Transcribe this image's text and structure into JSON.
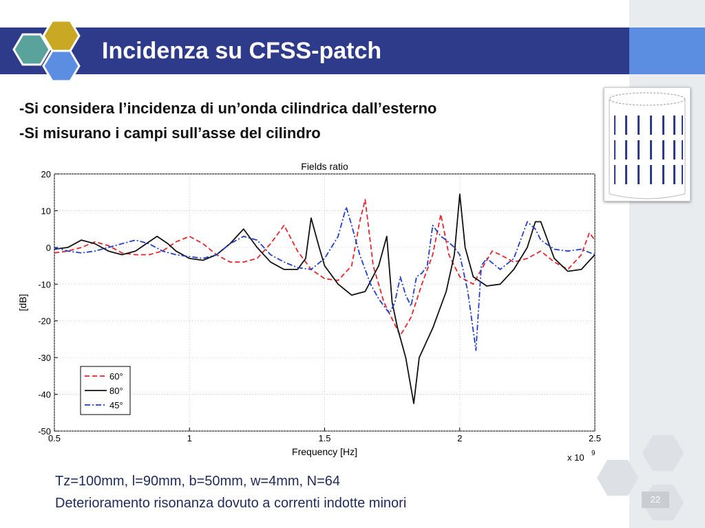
{
  "slide": {
    "title": "Incidenza su CFSS-patch",
    "bullets": [
      "-Si considera l’incidenza di un’onda cilindrica dall’esterno",
      "-Si misurano i campi sull’asse del cilindro"
    ],
    "notes": [
      "Tz=100mm,  l=90mm,  b=50mm,  w=4mm,  N=64",
      "Deterioramento risonanza dovuto a  correnti indotte minori"
    ],
    "slide_number": "22"
  },
  "colors": {
    "title_bar": "#2e3a8a",
    "accent": "#5b8de0",
    "series_60": "#e8232a",
    "series_80": "#111111",
    "series_45": "#1f3ec9"
  },
  "chart_data": {
    "type": "line",
    "title": "Fields ratio",
    "xlabel": "Frequency [Hz]",
    "ylabel": "[dB]",
    "x_multiplier_label": "x 10",
    "x_multiplier_exp": "9",
    "xlim": [
      0.5,
      2.5
    ],
    "ylim": [
      -50,
      20
    ],
    "x_ticks": [
      0.5,
      1,
      1.5,
      2,
      2.5
    ],
    "x_tick_labels": [
      "0.5",
      "1",
      "1.5",
      "2",
      "2.5"
    ],
    "y_ticks": [
      -50,
      -40,
      -30,
      -20,
      -10,
      0,
      10,
      20
    ],
    "y_tick_labels": [
      "-50",
      "-40",
      "-30",
      "-20",
      "-10",
      "0",
      "10",
      "20"
    ],
    "grid": true,
    "legend_position": "bottom-left",
    "series": [
      {
        "name": "60°",
        "style": "dashed",
        "x": [
          0.5,
          0.55,
          0.6,
          0.65,
          0.7,
          0.75,
          0.8,
          0.85,
          0.9,
          0.95,
          1.0,
          1.05,
          1.1,
          1.15,
          1.2,
          1.25,
          1.3,
          1.35,
          1.4,
          1.45,
          1.5,
          1.55,
          1.6,
          1.63,
          1.65,
          1.68,
          1.72,
          1.78,
          1.82,
          1.86,
          1.9,
          1.93,
          1.96,
          2.0,
          2.05,
          2.08,
          2.12,
          2.15,
          2.2,
          2.25,
          2.3,
          2.35,
          2.4,
          2.45,
          2.48,
          2.5
        ],
        "y": [
          -1.5,
          -1,
          0,
          1.5,
          0.5,
          -1.5,
          -2,
          -2,
          -1,
          1.5,
          3,
          1,
          -2,
          -4,
          -4,
          -3,
          1,
          6,
          -1,
          -6,
          -8.5,
          -9,
          -5,
          7,
          13,
          -5,
          -15,
          -24,
          -19,
          -10,
          -2,
          9,
          -2,
          -8,
          -10,
          -6,
          -1,
          -2,
          -4,
          -3,
          -1,
          -4,
          -6,
          -2,
          4,
          2
        ]
      },
      {
        "name": "80°",
        "style": "solid",
        "x": [
          0.5,
          0.55,
          0.6,
          0.65,
          0.7,
          0.75,
          0.8,
          0.85,
          0.88,
          0.92,
          0.95,
          1.0,
          1.05,
          1.1,
          1.15,
          1.2,
          1.25,
          1.3,
          1.35,
          1.4,
          1.43,
          1.45,
          1.48,
          1.5,
          1.55,
          1.6,
          1.65,
          1.7,
          1.73,
          1.75,
          1.77,
          1.8,
          1.83,
          1.85,
          1.9,
          1.95,
          1.98,
          2.0,
          2.02,
          2.05,
          2.1,
          2.15,
          2.2,
          2.25,
          2.28,
          2.3,
          2.35,
          2.4,
          2.45,
          2.5
        ],
        "y": [
          -0.5,
          0,
          2,
          1,
          -1,
          -2,
          -1,
          1.5,
          3,
          1,
          -1,
          -3,
          -3.5,
          -2,
          1,
          5,
          0,
          -4,
          -6,
          -6,
          -3,
          8,
          0,
          -5,
          -10,
          -13,
          -12,
          -5,
          3,
          -15,
          -22,
          -30,
          -42.5,
          -30,
          -22,
          -12,
          -2,
          14.5,
          0,
          -8,
          -10.5,
          -10,
          -6,
          0,
          7,
          7,
          -3,
          -6.5,
          -6,
          -2
        ]
      },
      {
        "name": "45°",
        "style": "dashdot",
        "x": [
          0.5,
          0.55,
          0.6,
          0.65,
          0.7,
          0.75,
          0.8,
          0.85,
          0.9,
          0.95,
          1.0,
          1.05,
          1.1,
          1.15,
          1.2,
          1.25,
          1.3,
          1.35,
          1.4,
          1.45,
          1.5,
          1.55,
          1.58,
          1.6,
          1.63,
          1.67,
          1.7,
          1.74,
          1.76,
          1.78,
          1.8,
          1.82,
          1.84,
          1.86,
          1.88,
          1.9,
          1.93,
          1.95,
          1.98,
          2.0,
          2.03,
          2.06,
          2.08,
          2.1,
          2.15,
          2.2,
          2.25,
          2.28,
          2.3,
          2.35,
          2.4,
          2.45,
          2.5
        ],
        "y": [
          0,
          -1,
          -1.5,
          -1,
          0,
          1,
          2,
          1,
          -1,
          -2,
          -2.5,
          -3,
          -2,
          1,
          3,
          2,
          -2,
          -4,
          -5.5,
          -6,
          -3,
          3,
          11,
          6,
          -2,
          -10,
          -14,
          -18,
          -15,
          -8,
          -13,
          -16,
          -8,
          -7,
          -5,
          6,
          3,
          2,
          0,
          -2,
          -12,
          -28,
          -5,
          -3,
          -6,
          -3,
          7,
          5,
          2,
          -0.5,
          -1,
          -0.5,
          -2
        ]
      }
    ]
  }
}
